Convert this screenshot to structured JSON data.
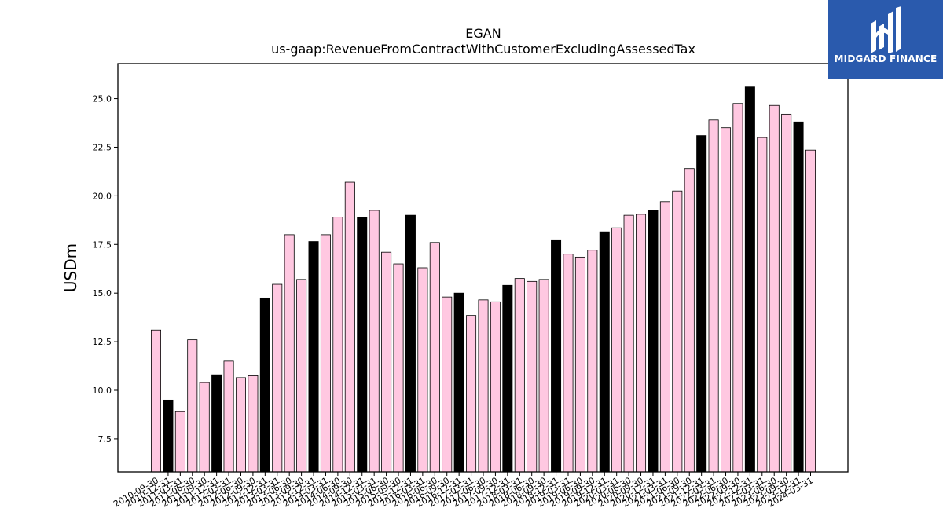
{
  "colors": {
    "bar_light": "#ffc8e1",
    "bar_dark": "#000000",
    "bar_edge": "#000000",
    "logo_bg": "#2a5aad",
    "logo_fg": "#ffffff"
  },
  "logo": {
    "text": "MIDGARD FINANCE",
    "icon": "midgard-logo-icon"
  },
  "chart_data": {
    "type": "bar",
    "title": "EGAN",
    "subtitle": "us-gaap:RevenueFromContractWithCustomerExcludingAssessedTax",
    "xlabel": "",
    "ylabel": "USDm",
    "ylim": [
      5.8,
      26.8
    ],
    "yticks": [
      "7.5",
      "10.0",
      "12.5",
      "15.0",
      "17.5",
      "20.0",
      "22.5",
      "25.0"
    ],
    "grid": false,
    "categories": [
      "2010-09-30",
      "2010-12-31",
      "2011-03-31",
      "2011-06-30",
      "2011-09-30",
      "2011-12-31",
      "2012-03-31",
      "2012-06-30",
      "2012-09-30",
      "2012-12-31",
      "2013-03-31",
      "2013-06-30",
      "2013-09-30",
      "2013-12-31",
      "2014-03-31",
      "2014-06-30",
      "2014-09-30",
      "2014-12-31",
      "2015-03-31",
      "2015-06-30",
      "2015-09-30",
      "2015-12-31",
      "2016-03-31",
      "2016-06-30",
      "2016-09-30",
      "2016-12-31",
      "2017-03-31",
      "2017-06-30",
      "2017-09-30",
      "2017-12-31",
      "2018-03-31",
      "2018-06-30",
      "2018-09-30",
      "2018-12-31",
      "2019-03-31",
      "2019-06-30",
      "2019-09-30",
      "2019-12-31",
      "2020-03-31",
      "2020-06-30",
      "2020-09-30",
      "2020-12-31",
      "2021-03-31",
      "2021-06-30",
      "2021-09-30",
      "2021-12-31",
      "2022-03-31",
      "2022-06-30",
      "2022-09-30",
      "2022-12-31",
      "2023-03-31",
      "2023-06-30",
      "2023-09-30",
      "2023-12-31",
      "2024-03-31"
    ],
    "values": [
      13.1,
      9.5,
      8.9,
      12.6,
      10.4,
      10.8,
      11.5,
      10.65,
      10.75,
      14.75,
      15.45,
      18.0,
      15.7,
      17.65,
      18.0,
      18.9,
      20.7,
      18.9,
      19.25,
      17.1,
      16.5,
      19.0,
      16.3,
      17.6,
      14.8,
      15.0,
      13.85,
      14.65,
      14.55,
      15.4,
      15.75,
      15.6,
      15.7,
      17.7,
      17.0,
      16.85,
      17.2,
      18.15,
      18.35,
      19.0,
      19.05,
      19.25,
      19.7,
      20.25,
      21.4,
      23.1,
      23.9,
      23.5,
      24.75,
      25.6,
      23.0,
      24.65,
      24.2,
      23.8,
      22.35
    ],
    "year_end_dates": [
      "2010-12-31",
      "2011-12-31",
      "2012-12-31",
      "2013-12-31",
      "2014-12-31",
      "2015-12-31",
      "2016-12-31",
      "2017-12-31",
      "2018-12-31",
      "2019-12-31",
      "2020-12-31",
      "2021-12-31",
      "2022-12-31",
      "2023-12-31"
    ]
  }
}
